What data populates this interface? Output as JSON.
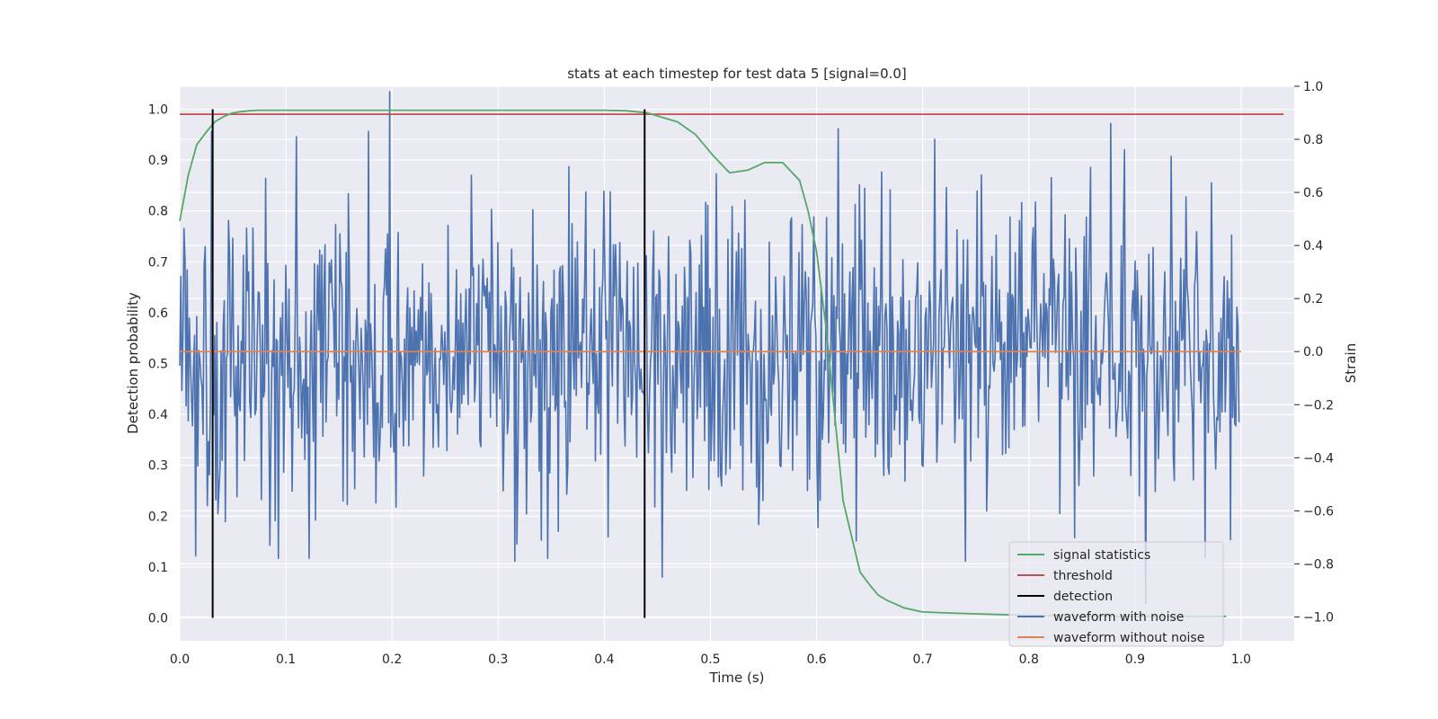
{
  "chart_data": {
    "type": "line",
    "title": "stats at each timestep for test data 5 [signal=0.0]",
    "xlabel": "Time (s)",
    "ylabel_left": "Detection probability",
    "ylabel_right": "Strain",
    "xlim": [
      0.0,
      1.05
    ],
    "ylim_left": [
      -0.045,
      1.045
    ],
    "ylim_right": [
      -1.09,
      1.0
    ],
    "xticks": [
      0.0,
      0.1,
      0.2,
      0.3,
      0.4,
      0.5,
      0.6,
      0.7,
      0.8,
      0.9,
      1.0
    ],
    "xtick_labels": [
      "0.0",
      "0.1",
      "0.2",
      "0.3",
      "0.4",
      "0.5",
      "0.6",
      "0.7",
      "0.8",
      "0.9",
      "1.0"
    ],
    "yticks_left": [
      0.0,
      0.1,
      0.2,
      0.3,
      0.4,
      0.5,
      0.6,
      0.7,
      0.8,
      0.9,
      1.0
    ],
    "ytick_labels_left": [
      "0.0",
      "0.1",
      "0.2",
      "0.3",
      "0.4",
      "0.5",
      "0.6",
      "0.7",
      "0.8",
      "0.9",
      "1.0"
    ],
    "yticks_right": [
      -1.0,
      -0.8,
      -0.6,
      -0.4,
      -0.2,
      0.0,
      0.2,
      0.4,
      0.6,
      0.8,
      1.0
    ],
    "ytick_labels_right": [
      "−1.0",
      "−0.8",
      "−0.6",
      "−0.4",
      "−0.2",
      "0.0",
      "0.2",
      "0.4",
      "0.6",
      "0.8",
      "1.0"
    ],
    "grid": true,
    "legend_position": "lower-right",
    "series": [
      {
        "name": "signal statistics",
        "axis": "left",
        "color": "#55a868",
        "x": [
          0.0,
          0.008,
          0.016,
          0.025,
          0.033,
          0.041,
          0.049,
          0.057,
          0.066,
          0.074,
          0.1,
          0.2,
          0.3,
          0.4,
          0.42,
          0.44,
          0.453,
          0.469,
          0.486,
          0.502,
          0.518,
          0.535,
          0.551,
          0.568,
          0.584,
          0.592,
          0.6,
          0.609,
          0.617,
          0.625,
          0.633,
          0.641,
          0.65,
          0.658,
          0.666,
          0.682,
          0.699,
          0.72,
          0.75,
          0.8,
          0.85,
          0.9,
          0.95,
          0.986
        ],
        "y": [
          0.78,
          0.87,
          0.93,
          0.955,
          0.975,
          0.985,
          0.992,
          0.995,
          0.997,
          0.998,
          0.998,
          0.998,
          0.998,
          0.998,
          0.997,
          0.993,
          0.985,
          0.975,
          0.95,
          0.91,
          0.875,
          0.88,
          0.895,
          0.895,
          0.86,
          0.8,
          0.72,
          0.57,
          0.4,
          0.23,
          0.16,
          0.09,
          0.065,
          0.045,
          0.035,
          0.02,
          0.012,
          0.01,
          0.008,
          0.005,
          0.004,
          0.003,
          0.003,
          0.003
        ]
      },
      {
        "name": "threshold",
        "axis": "left",
        "color": "#c44e52",
        "x": [
          0.0,
          1.04
        ],
        "y": [
          0.99,
          0.99
        ]
      },
      {
        "name": "detection",
        "axis": "left",
        "color": "#000000",
        "segments": [
          {
            "x": 0.031,
            "y": [
              0.0,
              1.0
            ]
          },
          {
            "x": 0.438,
            "y": [
              0.0,
              1.0
            ]
          }
        ]
      },
      {
        "name": "waveform with noise",
        "axis": "right",
        "color": "#4c72b0",
        "generated": {
          "x_start": 0.0,
          "x_end": 0.998,
          "count": 1000,
          "sigma": 0.28,
          "clip": [
            -0.95,
            1.0
          ],
          "peaks": [
            {
              "x": 0.198,
              "y": 0.98
            },
            {
              "x": 0.178,
              "y": 0.83
            },
            {
              "x": 0.11,
              "y": 0.81
            },
            {
              "x": 0.877,
              "y": 0.86
            },
            {
              "x": 0.62,
              "y": 0.84
            },
            {
              "x": 0.03,
              "y": 0.83
            },
            {
              "x": 0.455,
              "y": -0.85
            },
            {
              "x": 0.91,
              "y": -0.95
            },
            {
              "x": 0.74,
              "y": -0.79
            },
            {
              "x": 0.316,
              "y": -0.79
            },
            {
              "x": 0.015,
              "y": -0.77
            },
            {
              "x": 0.085,
              "y": -0.73
            }
          ]
        }
      },
      {
        "name": "waveform without noise",
        "axis": "right",
        "color": "#dd8452",
        "x": [
          0.0,
          1.0
        ],
        "y": [
          0.0,
          0.0
        ]
      }
    ]
  }
}
